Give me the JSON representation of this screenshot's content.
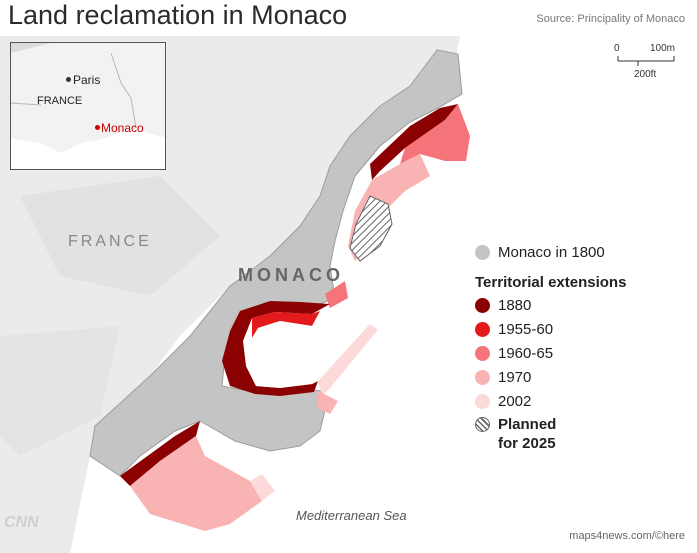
{
  "title": "Land reclamation in Monaco",
  "source": "Source: Principality of Monaco",
  "inset": {
    "paris": "Paris",
    "france": "FRANCE",
    "monaco": "Monaco"
  },
  "labels": {
    "france": "FRANCE",
    "monaco": "MONACO",
    "sea": "Mediterranean Sea"
  },
  "scale": {
    "zero": "0",
    "meters": "100m",
    "feet": "200ft"
  },
  "legend": {
    "base": "Monaco in 1800",
    "header": "Territorial extensions",
    "items": [
      {
        "label": "1880",
        "color": "#8b0000"
      },
      {
        "label": "1955-60",
        "color": "#e31a1c"
      },
      {
        "label": "1960-65",
        "color": "#f4747a"
      },
      {
        "label": "1970",
        "color": "#f9b3b3"
      },
      {
        "label": "2002",
        "color": "#fcdada"
      }
    ],
    "planned_line1": "Planned",
    "planned_line2": "for 2025"
  },
  "colors": {
    "base": "#c4c4c4",
    "france_land": "#ededed",
    "water": "#ffffff"
  },
  "credit": "maps4news.com/©here",
  "logo": "CNN"
}
